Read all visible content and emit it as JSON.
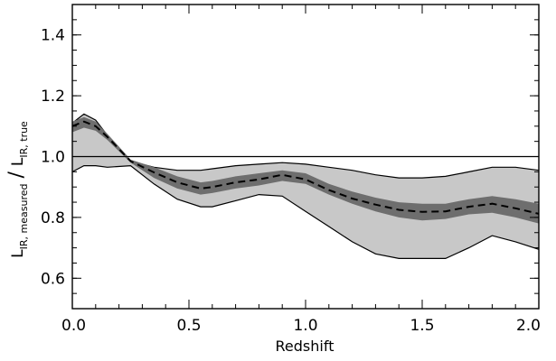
{
  "chart_data": {
    "type": "area",
    "title": "",
    "xlabel": "Redshift",
    "ylabel": {
      "main1": "L",
      "sub1": "IR, measured",
      "slash": "/",
      "main2": "L",
      "sub2": "IR, true"
    },
    "xlim": [
      0.0,
      2.0
    ],
    "ylim": [
      0.5,
      1.5
    ],
    "x_ticks": [
      0.0,
      0.5,
      1.0,
      1.5,
      2.0
    ],
    "x_tick_labels": [
      "0.0",
      "0.5",
      "1.0",
      "1.5",
      "2.0"
    ],
    "y_ticks": [
      0.6,
      0.8,
      1.0,
      1.2,
      1.4
    ],
    "y_tick_labels": [
      "0.6",
      "0.8",
      "1.0",
      "1.2",
      "1.4"
    ],
    "reference_line_y": 1.0,
    "colors": {
      "outer_band": "#c8c8c8",
      "inner_band": "#6e6e6e",
      "median": "#000000",
      "reference": "#000000"
    },
    "series": [
      {
        "role": "outer-band",
        "x": [
          0.0,
          0.05,
          0.1,
          0.15,
          0.25,
          0.35,
          0.45,
          0.55,
          0.6,
          0.7,
          0.8,
          0.9,
          1.0,
          1.1,
          1.2,
          1.3,
          1.4,
          1.5,
          1.6,
          1.7,
          1.8,
          1.9,
          2.0
        ],
        "upper": [
          1.11,
          1.14,
          1.12,
          1.07,
          0.985,
          0.965,
          0.955,
          0.955,
          0.96,
          0.97,
          0.975,
          0.98,
          0.975,
          0.965,
          0.955,
          0.94,
          0.93,
          0.93,
          0.935,
          0.95,
          0.965,
          0.965,
          0.955
        ],
        "lower": [
          0.95,
          0.97,
          0.97,
          0.965,
          0.97,
          0.91,
          0.86,
          0.835,
          0.835,
          0.855,
          0.875,
          0.87,
          0.82,
          0.77,
          0.72,
          0.68,
          0.665,
          0.665,
          0.665,
          0.7,
          0.74,
          0.72,
          0.695
        ]
      },
      {
        "role": "inner-band",
        "x": [
          0.0,
          0.05,
          0.1,
          0.15,
          0.25,
          0.35,
          0.45,
          0.55,
          0.6,
          0.7,
          0.8,
          0.9,
          1.0,
          1.1,
          1.2,
          1.3,
          1.4,
          1.5,
          1.6,
          1.7,
          1.8,
          1.9,
          2.0
        ],
        "upper": [
          1.115,
          1.13,
          1.115,
          1.075,
          0.99,
          0.965,
          0.935,
          0.915,
          0.92,
          0.935,
          0.945,
          0.955,
          0.945,
          0.91,
          0.885,
          0.865,
          0.85,
          0.845,
          0.845,
          0.86,
          0.87,
          0.86,
          0.845
        ],
        "lower": [
          1.08,
          1.095,
          1.085,
          1.055,
          0.98,
          0.93,
          0.895,
          0.875,
          0.88,
          0.895,
          0.905,
          0.92,
          0.91,
          0.875,
          0.845,
          0.82,
          0.8,
          0.79,
          0.795,
          0.81,
          0.815,
          0.8,
          0.78
        ]
      },
      {
        "role": "median",
        "x": [
          0.0,
          0.05,
          0.1,
          0.15,
          0.25,
          0.35,
          0.45,
          0.55,
          0.6,
          0.7,
          0.8,
          0.9,
          1.0,
          1.1,
          1.2,
          1.3,
          1.4,
          1.5,
          1.6,
          1.7,
          1.8,
          1.9,
          2.0
        ],
        "values": [
          1.1,
          1.115,
          1.1,
          1.065,
          0.985,
          0.948,
          0.915,
          0.895,
          0.9,
          0.915,
          0.925,
          0.94,
          0.925,
          0.89,
          0.862,
          0.842,
          0.825,
          0.818,
          0.82,
          0.835,
          0.845,
          0.83,
          0.812
        ]
      }
    ]
  }
}
